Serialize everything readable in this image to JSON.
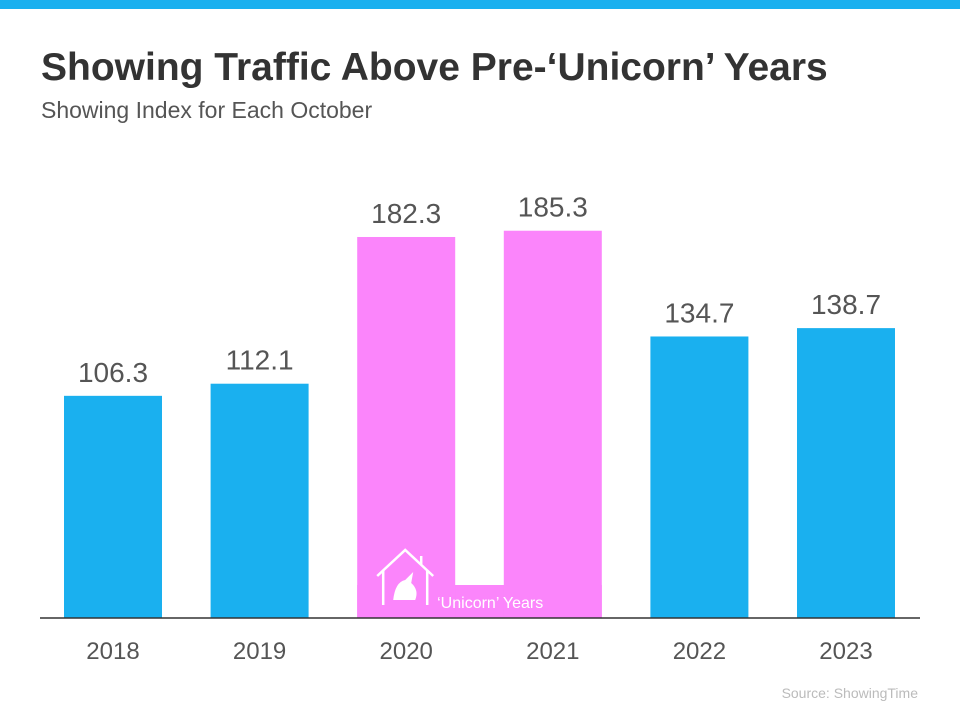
{
  "chart_data": {
    "type": "bar",
    "title": "Showing Traffic Above Pre-‘Unicorn’ Years",
    "subtitle": "Showing Index for Each October",
    "categories": [
      "2018",
      "2019",
      "2020",
      "2021",
      "2022",
      "2023"
    ],
    "values": [
      106.3,
      112.1,
      182.3,
      185.3,
      134.7,
      138.7
    ],
    "colors": [
      "#1ab0ef",
      "#1ab0ef",
      "#fb85fb",
      "#fb85fb",
      "#1ab0ef",
      "#1ab0ef"
    ],
    "annotation": "‘Unicorn’ Years",
    "source": "Source: ShowingTime"
  }
}
